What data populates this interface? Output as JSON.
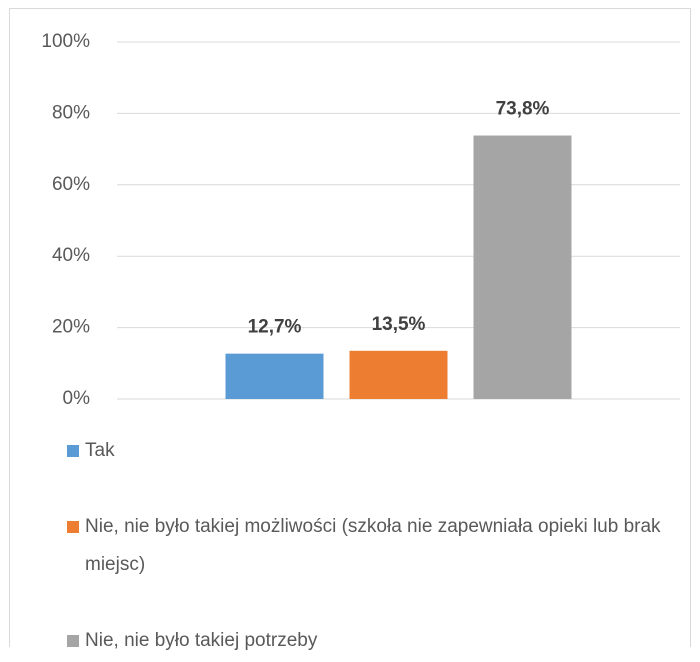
{
  "chart_data": {
    "type": "bar",
    "categories": [
      null
    ],
    "series": [
      {
        "name": "Tak",
        "color": "#5b9bd5",
        "values": [
          12.7
        ],
        "value_labels": [
          "12,7%"
        ]
      },
      {
        "name": "Nie, nie było takiej możliwości (szkoła nie zapewniała opieki lub brak miejsc)",
        "color": "#ed7d31",
        "values": [
          13.5
        ],
        "value_labels": [
          "13,5%"
        ]
      },
      {
        "name": "Nie, nie było takiej potrzeby",
        "color": "#a5a5a5",
        "values": [
          73.8
        ],
        "value_labels": [
          "73,8%"
        ]
      }
    ],
    "ylim": [
      0,
      100
    ],
    "yticks": [
      {
        "value": 0,
        "label": "0%"
      },
      {
        "value": 20,
        "label": "20%"
      },
      {
        "value": 40,
        "label": "40%"
      },
      {
        "value": 60,
        "label": "60%"
      },
      {
        "value": 80,
        "label": "80%"
      },
      {
        "value": 100,
        "label": "100%"
      }
    ],
    "grid": true,
    "legend": "bottom"
  }
}
